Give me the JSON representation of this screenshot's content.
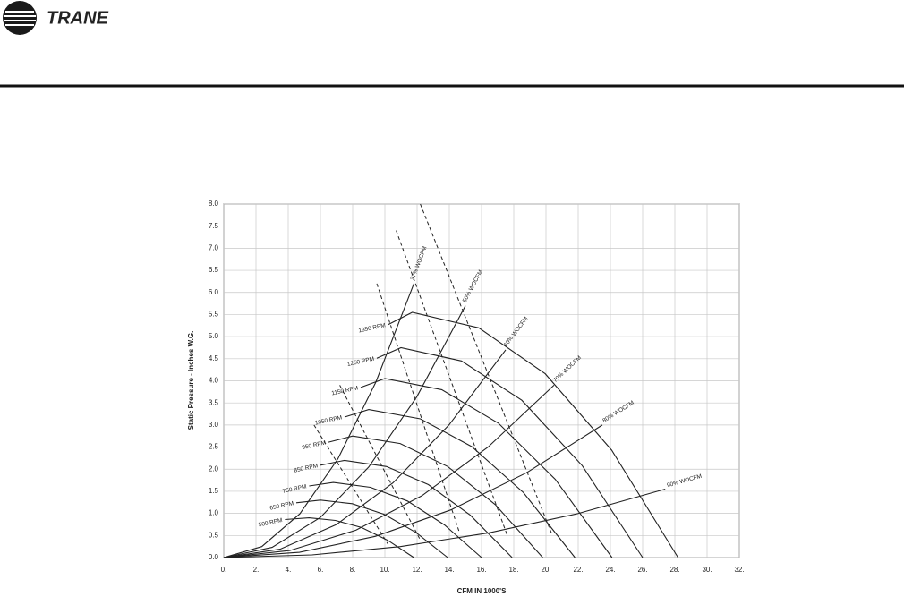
{
  "header": {
    "brand": "TRANE"
  },
  "chart_data": {
    "type": "line",
    "xlabel": "CFM IN 1000'S",
    "ylabel": "Static Pressure - Inches W.G.",
    "xlim": [
      0,
      32
    ],
    "ylim": [
      0,
      8
    ],
    "xticks": [
      {
        "value": 0,
        "label": "0."
      },
      {
        "value": 2,
        "label": "2."
      },
      {
        "value": 4,
        "label": "4."
      },
      {
        "value": 6,
        "label": "6."
      },
      {
        "value": 8,
        "label": "8."
      },
      {
        "value": 10,
        "label": "10."
      },
      {
        "value": 12,
        "label": "12."
      },
      {
        "value": 14,
        "label": "14."
      },
      {
        "value": 16,
        "label": "16."
      },
      {
        "value": 18,
        "label": "18."
      },
      {
        "value": 20,
        "label": "20."
      },
      {
        "value": 22,
        "label": "22."
      },
      {
        "value": 24,
        "label": "24."
      },
      {
        "value": 26,
        "label": "26."
      },
      {
        "value": 28,
        "label": "28."
      },
      {
        "value": 30,
        "label": "30."
      },
      {
        "value": 32,
        "label": "32."
      }
    ],
    "yticks": [
      {
        "value": 0,
        "label": "0.0"
      },
      0.5,
      {
        "value": 1,
        "label": "1.0"
      },
      1.5,
      {
        "value": 2,
        "label": "2.0"
      },
      2.5,
      {
        "value": 3,
        "label": "3.0"
      },
      3.5,
      {
        "value": 4,
        "label": "4.0"
      },
      4.5,
      {
        "value": 5,
        "label": "5.0"
      },
      5.5,
      {
        "value": 6,
        "label": "6.0"
      },
      6.5,
      {
        "value": 7,
        "label": "7.0"
      },
      7.5,
      {
        "value": 8,
        "label": "8.0"
      }
    ],
    "grid": true,
    "color": "#222222",
    "series": [
      {
        "name": "500 RPM",
        "kind": "rpm",
        "x": [
          3.8,
          5.3,
          6.93,
          8.55,
          10.18,
          11.8
        ],
        "values": [
          0.86,
          0.9,
          0.84,
          0.68,
          0.39,
          0
        ]
      },
      {
        "name": "650 RPM",
        "kind": "rpm",
        "x": [
          4.5,
          6,
          7.98,
          9.95,
          11.93,
          13.9
        ],
        "values": [
          1.24,
          1.3,
          1.22,
          0.98,
          0.57,
          0
        ]
      },
      {
        "name": "750 RPM",
        "kind": "rpm",
        "x": [
          5.3,
          6.8,
          9.1,
          11.4,
          13.7,
          16
        ],
        "values": [
          1.62,
          1.7,
          1.59,
          1.28,
          0.74,
          0
        ]
      },
      {
        "name": "850 RPM",
        "kind": "rpm",
        "x": [
          6,
          7.5,
          10.1,
          12.7,
          15.3,
          17.9
        ],
        "values": [
          2.09,
          2.2,
          2.06,
          1.65,
          0.96,
          0
        ]
      },
      {
        "name": "950 RPM",
        "kind": "rpm",
        "x": [
          6.5,
          8,
          10.95,
          13.9,
          16.85,
          19.8
        ],
        "values": [
          2.61,
          2.75,
          2.58,
          2.06,
          1.2,
          0
        ]
      },
      {
        "name": "1050 RPM",
        "kind": "rpm",
        "x": [
          7.5,
          9,
          12.2,
          15.4,
          18.6,
          21.8
        ],
        "values": [
          3.18,
          3.35,
          3.14,
          2.51,
          1.47,
          0
        ]
      },
      {
        "name": "1150 RPM",
        "kind": "rpm",
        "x": [
          8.5,
          10,
          13.53,
          17.05,
          20.58,
          24.1
        ],
        "values": [
          3.85,
          4.05,
          3.8,
          3.04,
          1.77,
          0
        ]
      },
      {
        "name": "1250 RPM",
        "kind": "rpm",
        "x": [
          9.5,
          11,
          14.75,
          18.5,
          22.25,
          26
        ],
        "values": [
          4.51,
          4.75,
          4.45,
          3.56,
          2.08,
          0
        ]
      },
      {
        "name": "1350 RPM",
        "kind": "rpm",
        "x": [
          10.2,
          11.7,
          15.83,
          19.95,
          24.08,
          28.2
        ],
        "values": [
          5.27,
          5.55,
          5.2,
          4.16,
          2.43,
          0
        ]
      },
      {
        "name": "37% WOCFM",
        "kind": "system",
        "x": [
          0,
          2.36,
          4.72,
          7.08,
          9.44,
          11.8
        ],
        "values": [
          0,
          0.25,
          0.99,
          2.23,
          3.97,
          6.2
        ]
      },
      {
        "name": "50% WOCFM",
        "kind": "system",
        "x": [
          0,
          3,
          6,
          9,
          12,
          15
        ],
        "values": [
          0,
          0.23,
          0.91,
          2.05,
          3.65,
          5.7
        ]
      },
      {
        "name": "60% WOCFM",
        "kind": "system",
        "x": [
          0,
          3.5,
          7,
          10.5,
          14,
          17.5
        ],
        "values": [
          0,
          0.19,
          0.75,
          1.69,
          3.01,
          4.7
        ]
      },
      {
        "name": "70% WOCFM",
        "kind": "system",
        "x": [
          0,
          4.1,
          8.2,
          12.3,
          16.4,
          20.5
        ],
        "values": [
          0,
          0.16,
          0.62,
          1.4,
          2.5,
          3.9
        ]
      },
      {
        "name": "80% WOCFM",
        "kind": "system",
        "x": [
          0,
          4.7,
          9.4,
          14.1,
          18.8,
          23.5
        ],
        "values": [
          0,
          0.12,
          0.48,
          1.08,
          1.92,
          3.0
        ]
      },
      {
        "name": "90% WOCFM",
        "kind": "system",
        "x": [
          0,
          5.48,
          10.96,
          16.44,
          21.92,
          27.4
        ],
        "values": [
          0,
          0.06,
          0.25,
          0.56,
          0.99,
          1.55
        ]
      }
    ],
    "dashed_lines": [
      {
        "x": [
          5.6,
          10.2
        ],
        "values": [
          3.0,
          0.3
        ]
      },
      {
        "x": [
          7.2,
          12.2
        ],
        "values": [
          3.9,
          0.4
        ]
      },
      {
        "x": [
          9.5,
          14.6
        ],
        "values": [
          6.2,
          0.6
        ]
      },
      {
        "x": [
          10.7,
          17.6
        ],
        "values": [
          7.4,
          0.5
        ]
      },
      {
        "x": [
          12.2,
          20.4
        ],
        "values": [
          8.0,
          0.5
        ]
      }
    ]
  }
}
